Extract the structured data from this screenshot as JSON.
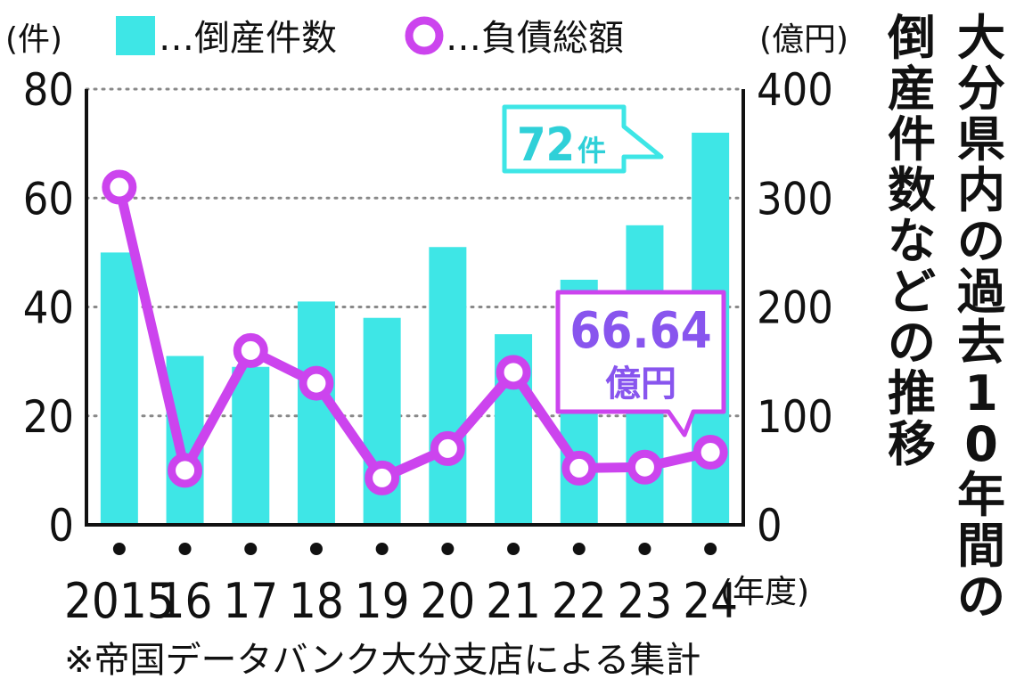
{
  "chart_data": {
    "type": "bar",
    "title_lines": [
      "大分県内の過去10年間の",
      "倒産件数などの推移"
    ],
    "categories": [
      "2015",
      "16",
      "17",
      "18",
      "19",
      "20",
      "21",
      "22",
      "23",
      "24"
    ],
    "x_unit": "(年度)",
    "left_axis": {
      "unit": "(件)",
      "ylim": [
        0,
        80
      ],
      "ticks": [
        "0",
        "20",
        "40",
        "60",
        "80"
      ]
    },
    "right_axis": {
      "unit": "(億円)",
      "ylim": [
        0,
        400
      ],
      "ticks": [
        "0",
        "100",
        "200",
        "300",
        "400"
      ]
    },
    "series": [
      {
        "name": "倒産件数",
        "type": "bar",
        "axis": "left",
        "color": "#3ee6e6",
        "values": [
          50,
          31,
          29,
          41,
          38,
          51,
          35,
          45,
          55,
          72
        ]
      },
      {
        "name": "負債総額",
        "type": "line",
        "axis": "right",
        "color": "#cc44ee",
        "values": [
          310,
          50,
          160,
          130,
          43,
          70,
          140,
          52,
          53,
          66.64
        ]
      }
    ],
    "legend": [
      {
        "marker": "square",
        "color": "#3ee6e6",
        "text": "…倒産件数"
      },
      {
        "marker": "ring",
        "color": "#cc44ee",
        "text": "…負債総額"
      }
    ],
    "grid": true,
    "annotations": [
      {
        "target": "倒産件数-24",
        "value_text": "72",
        "unit_text": "件",
        "color": "#3ee6e6",
        "text_color": "#2fd0d8"
      },
      {
        "target": "負債総額-24",
        "value_text": "66.64",
        "unit_text": "億円",
        "color": "#cc44ee",
        "text_color": "#8855ee"
      }
    ]
  },
  "footnote": "※帝国データバンク大分支店による集計"
}
